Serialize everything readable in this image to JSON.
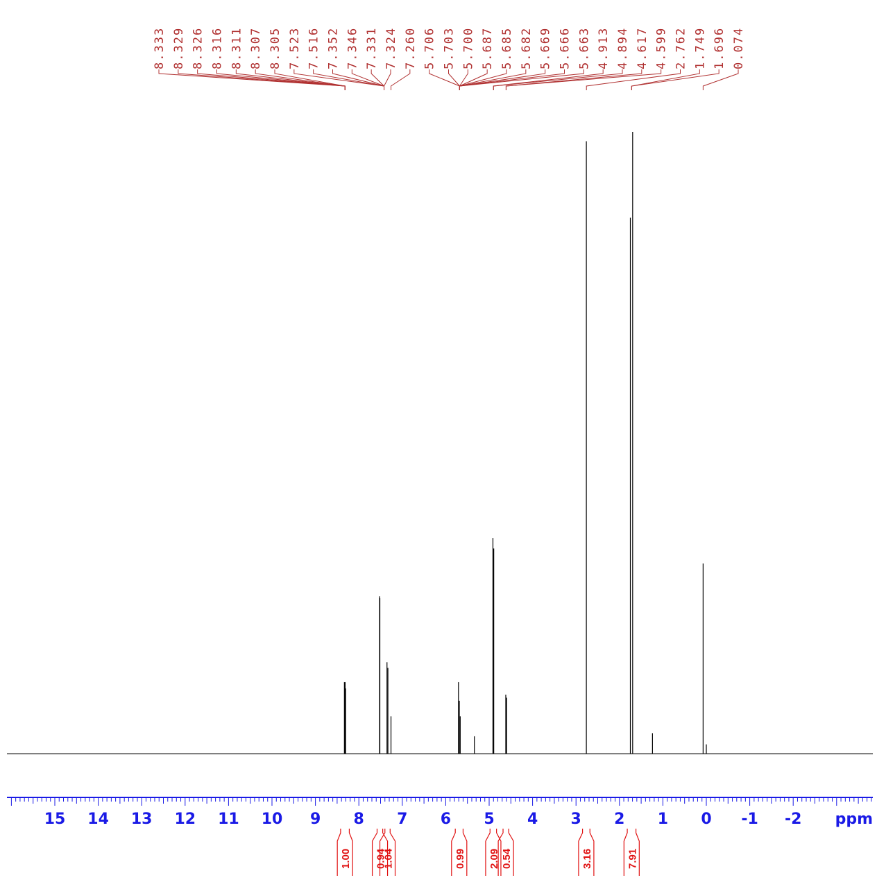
{
  "chart_data": {
    "type": "line",
    "title": "",
    "xlabel": "ppm",
    "ylabel": "",
    "xlim": [
      16.0,
      -3.9
    ],
    "x_direction": "reversed",
    "xticks": [
      15,
      14,
      13,
      12,
      11,
      10,
      9,
      8,
      7,
      6,
      5,
      4,
      3,
      2,
      1,
      0,
      -1,
      -2
    ],
    "xtick_labels": [
      "15",
      "14",
      "13",
      "12",
      "11",
      "10",
      "9",
      "8",
      "7",
      "6",
      "5",
      "4",
      "3",
      "2",
      "1",
      "0",
      "-1",
      "-2"
    ],
    "grid": false,
    "colors": {
      "spectrum": "#000000",
      "peak_labels": "#b03030",
      "axis": "#1a1ae6",
      "integrals": "#e01010"
    },
    "peak_labels": [
      "8.333",
      "8.329",
      "8.326",
      "8.316",
      "8.311",
      "8.307",
      "8.305",
      "7.523",
      "7.516",
      "7.352",
      "7.346",
      "7.331",
      "7.324",
      "7.260",
      "5.706",
      "5.703",
      "5.700",
      "5.687",
      "5.685",
      "5.682",
      "5.669",
      "5.666",
      "5.663",
      "4.913",
      "4.894",
      "4.617",
      "4.599",
      "2.762",
      "1.749",
      "1.696",
      "0.074"
    ],
    "peak_groups": [
      {
        "peaks": [
          0,
          1,
          2,
          3,
          4,
          5,
          6
        ],
        "center": 8.32
      },
      {
        "peaks": [
          7,
          8,
          9,
          10,
          11,
          12
        ],
        "center": 7.42
      },
      {
        "peaks": [
          13
        ],
        "center": 7.26
      },
      {
        "peaks": [
          14,
          15,
          16,
          17,
          18,
          19,
          20,
          21,
          22
        ],
        "center": 5.68
      },
      {
        "peaks": [
          23,
          24
        ],
        "center": 4.9
      },
      {
        "peaks": [
          25,
          26
        ],
        "center": 4.61
      },
      {
        "peaks": [
          27
        ],
        "center": 2.76
      },
      {
        "peaks": [
          28,
          29
        ],
        "center": 1.72
      },
      {
        "peaks": [
          30
        ],
        "center": 0.074
      }
    ],
    "series": [
      {
        "peaks": [
          {
            "ppm": 8.333,
            "intensity": 0.115
          },
          {
            "ppm": 8.316,
            "intensity": 0.115
          },
          {
            "ppm": 8.305,
            "intensity": 0.105
          },
          {
            "ppm": 7.523,
            "intensity": 0.253
          },
          {
            "ppm": 7.516,
            "intensity": 0.25
          },
          {
            "ppm": 7.352,
            "intensity": 0.147
          },
          {
            "ppm": 7.331,
            "intensity": 0.138
          },
          {
            "ppm": 7.26,
            "intensity": 0.06
          },
          {
            "ppm": 5.706,
            "intensity": 0.115
          },
          {
            "ppm": 5.687,
            "intensity": 0.085
          },
          {
            "ppm": 5.666,
            "intensity": 0.06
          },
          {
            "ppm": 5.34,
            "intensity": 0.028
          },
          {
            "ppm": 4.913,
            "intensity": 0.347
          },
          {
            "ppm": 4.894,
            "intensity": 0.33
          },
          {
            "ppm": 4.617,
            "intensity": 0.095
          },
          {
            "ppm": 4.599,
            "intensity": 0.09
          },
          {
            "ppm": 2.762,
            "intensity": 0.985
          },
          {
            "ppm": 1.749,
            "intensity": 0.862
          },
          {
            "ppm": 1.696,
            "intensity": 1.0
          },
          {
            "ppm": 1.24,
            "intensity": 0.033
          },
          {
            "ppm": 0.074,
            "intensity": 0.306
          },
          {
            "ppm": 0.0,
            "intensity": 0.015
          }
        ]
      }
    ],
    "integrals": [
      {
        "label": "1.00",
        "from": 8.42,
        "to": 8.22
      },
      {
        "label": "0.94",
        "from": 7.58,
        "to": 7.45
      },
      {
        "label": "1.04",
        "from": 7.4,
        "to": 7.28
      },
      {
        "label": "0.99",
        "from": 5.78,
        "to": 5.6
      },
      {
        "label": "2.09",
        "from": 4.98,
        "to": 4.83
      },
      {
        "label": "0.54",
        "from": 4.68,
        "to": 4.55
      },
      {
        "label": "3.16",
        "from": 2.85,
        "to": 2.68
      },
      {
        "label": "7.91",
        "from": 1.82,
        "to": 1.62
      }
    ]
  }
}
